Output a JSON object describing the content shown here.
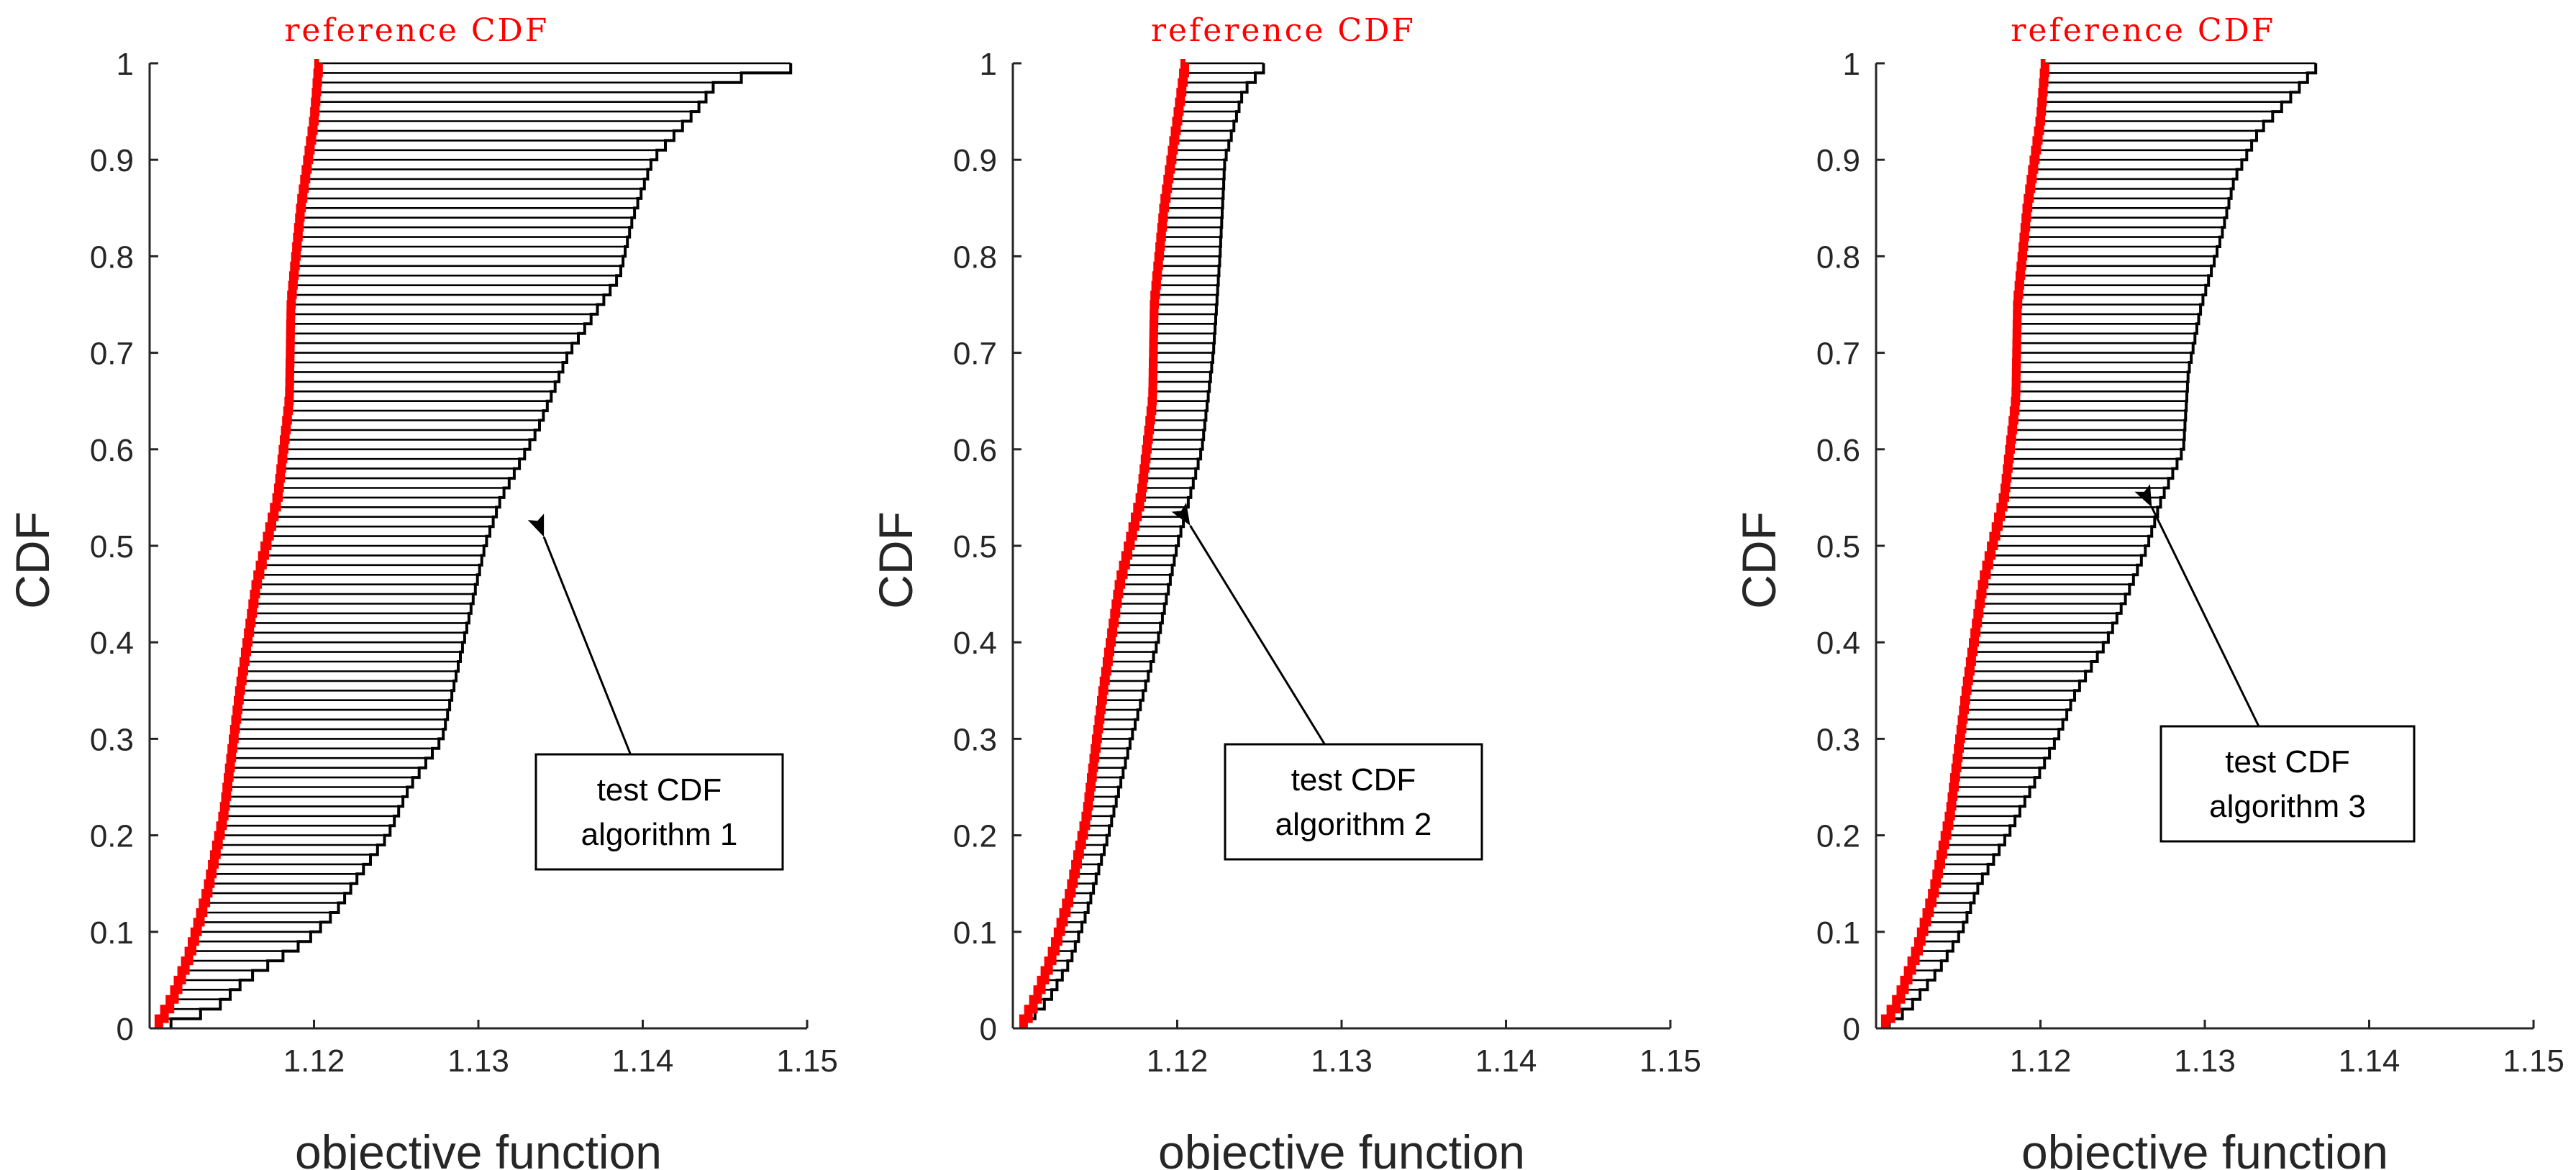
{
  "chart_data": [
    {
      "type": "line",
      "subtype": "stairs-cdf-comparison",
      "xlabel": "objective function",
      "ylabel": "CDF",
      "xlim": [
        1.11,
        1.15
      ],
      "ylim": [
        0,
        1
      ],
      "xticks": [
        "1.12",
        "1.13",
        "1.14",
        "1.15"
      ],
      "yticks": [
        "0",
        "0.1",
        "0.2",
        "0.3",
        "0.4",
        "0.5",
        "0.6",
        "0.7",
        "0.8",
        "0.9",
        "1"
      ],
      "reference_label": "reference CDF",
      "annotation": {
        "line1": "test CDF",
        "line2": "algorithm 1",
        "arrow_target": [
          1.1335,
          0.53
        ]
      },
      "series": [
        {
          "name": "reference CDF",
          "color": "#ff0000",
          "knots": [
            [
              1.1104,
              0.0
            ],
            [
              1.1114,
              0.03
            ],
            [
              1.1125,
              0.08
            ],
            [
              1.1135,
              0.14
            ],
            [
              1.1145,
              0.22
            ],
            [
              1.1155,
              0.35
            ],
            [
              1.1165,
              0.46
            ],
            [
              1.1178,
              0.55
            ],
            [
              1.1185,
              0.65
            ],
            [
              1.1186,
              0.75
            ],
            [
              1.1192,
              0.85
            ],
            [
              1.12,
              0.94
            ],
            [
              1.1203,
              1.0
            ]
          ]
        },
        {
          "name": "test CDF algorithm 1",
          "color": "#000000",
          "knots": [
            [
              1.1104,
              0.0
            ],
            [
              1.114,
              0.02
            ],
            [
              1.1158,
              0.05
            ],
            [
              1.1195,
              0.09
            ],
            [
              1.1213,
              0.12
            ],
            [
              1.1228,
              0.16
            ],
            [
              1.1245,
              0.2
            ],
            [
              1.1258,
              0.25
            ],
            [
              1.1278,
              0.3
            ],
            [
              1.1291,
              0.4
            ],
            [
              1.1304,
              0.5
            ],
            [
              1.1314,
              0.55
            ],
            [
              1.1336,
              0.62
            ],
            [
              1.1355,
              0.7
            ],
            [
              1.1386,
              0.78
            ],
            [
              1.1394,
              0.84
            ],
            [
              1.1406,
              0.9
            ],
            [
              1.1432,
              0.95
            ],
            [
              1.1445,
              0.98
            ],
            [
              1.1505,
              1.0
            ]
          ]
        }
      ]
    },
    {
      "type": "line",
      "subtype": "stairs-cdf-comparison",
      "xlabel": "objective function",
      "ylabel": "CDF",
      "xlim": [
        1.11,
        1.15
      ],
      "ylim": [
        0,
        1
      ],
      "xticks": [
        "1.12",
        "1.13",
        "1.14",
        "1.15"
      ],
      "yticks": [
        "0",
        "0.1",
        "0.2",
        "0.3",
        "0.4",
        "0.5",
        "0.6",
        "0.7",
        "0.8",
        "0.9",
        "1"
      ],
      "reference_label": "reference CDF",
      "annotation": {
        "line1": "test CDF",
        "line2": "algorithm 2",
        "arrow_target": [
          1.1201,
          0.54
        ]
      },
      "series": [
        {
          "name": "reference CDF",
          "color": "#ff0000",
          "knots": [
            [
              1.1105,
              0.0
            ],
            [
              1.1114,
              0.03
            ],
            [
              1.1125,
              0.08
            ],
            [
              1.1135,
              0.14
            ],
            [
              1.1145,
              0.22
            ],
            [
              1.1155,
              0.35
            ],
            [
              1.1165,
              0.46
            ],
            [
              1.1178,
              0.55
            ],
            [
              1.1185,
              0.65
            ],
            [
              1.1186,
              0.75
            ],
            [
              1.1192,
              0.85
            ],
            [
              1.12,
              0.94
            ],
            [
              1.1205,
              1.0
            ]
          ]
        },
        {
          "name": "test CDF algorithm 2",
          "color": "#000000",
          "knots": [
            [
              1.1105,
              0.0
            ],
            [
              1.1122,
              0.03
            ],
            [
              1.1135,
              0.07
            ],
            [
              1.1145,
              0.12
            ],
            [
              1.1158,
              0.2
            ],
            [
              1.1172,
              0.3
            ],
            [
              1.1188,
              0.4
            ],
            [
              1.12,
              0.5
            ],
            [
              1.1215,
              0.6
            ],
            [
              1.1222,
              0.7
            ],
            [
              1.1226,
              0.8
            ],
            [
              1.1229,
              0.9
            ],
            [
              1.124,
              0.97
            ],
            [
              1.1255,
              1.0
            ]
          ]
        }
      ]
    },
    {
      "type": "line",
      "subtype": "stairs-cdf-comparison",
      "xlabel": "objective function",
      "ylabel": "CDF",
      "xlim": [
        1.11,
        1.15
      ],
      "ylim": [
        0,
        1
      ],
      "xticks": [
        "1.12",
        "1.13",
        "1.14",
        "1.15"
      ],
      "yticks": [
        "0",
        "0.1",
        "0.2",
        "0.3",
        "0.4",
        "0.5",
        "0.6",
        "0.7",
        "0.8",
        "0.9",
        "1"
      ],
      "reference_label": "reference CDF",
      "annotation": {
        "line1": "test CDF",
        "line2": "algorithm 3",
        "arrow_target": [
          1.1262,
          0.56
        ]
      },
      "series": [
        {
          "name": "reference CDF",
          "color": "#ff0000",
          "knots": [
            [
              1.1104,
              0.0
            ],
            [
              1.1114,
              0.03
            ],
            [
              1.1125,
              0.08
            ],
            [
              1.1135,
              0.14
            ],
            [
              1.1145,
              0.22
            ],
            [
              1.1155,
              0.35
            ],
            [
              1.1165,
              0.46
            ],
            [
              1.1178,
              0.55
            ],
            [
              1.1185,
              0.65
            ],
            [
              1.1186,
              0.75
            ],
            [
              1.1192,
              0.85
            ],
            [
              1.12,
              0.94
            ],
            [
              1.1203,
              1.0
            ]
          ]
        },
        {
          "name": "test CDF algorithm 3",
          "color": "#000000",
          "knots": [
            [
              1.1104,
              0.0
            ],
            [
              1.112,
              0.02
            ],
            [
              1.1138,
              0.06
            ],
            [
              1.1152,
              0.1
            ],
            [
              1.1163,
              0.15
            ],
            [
              1.118,
              0.2
            ],
            [
              1.1195,
              0.25
            ],
            [
              1.121,
              0.3
            ],
            [
              1.1222,
              0.35
            ],
            [
              1.124,
              0.4
            ],
            [
              1.1253,
              0.45
            ],
            [
              1.1265,
              0.5
            ],
            [
              1.1274,
              0.55
            ],
            [
              1.1287,
              0.6
            ],
            [
              1.129,
              0.68
            ],
            [
              1.1298,
              0.75
            ],
            [
              1.131,
              0.82
            ],
            [
              1.1318,
              0.88
            ],
            [
              1.1333,
              0.93
            ],
            [
              1.1355,
              0.97
            ],
            [
              1.137,
              1.0
            ]
          ]
        }
      ]
    }
  ]
}
